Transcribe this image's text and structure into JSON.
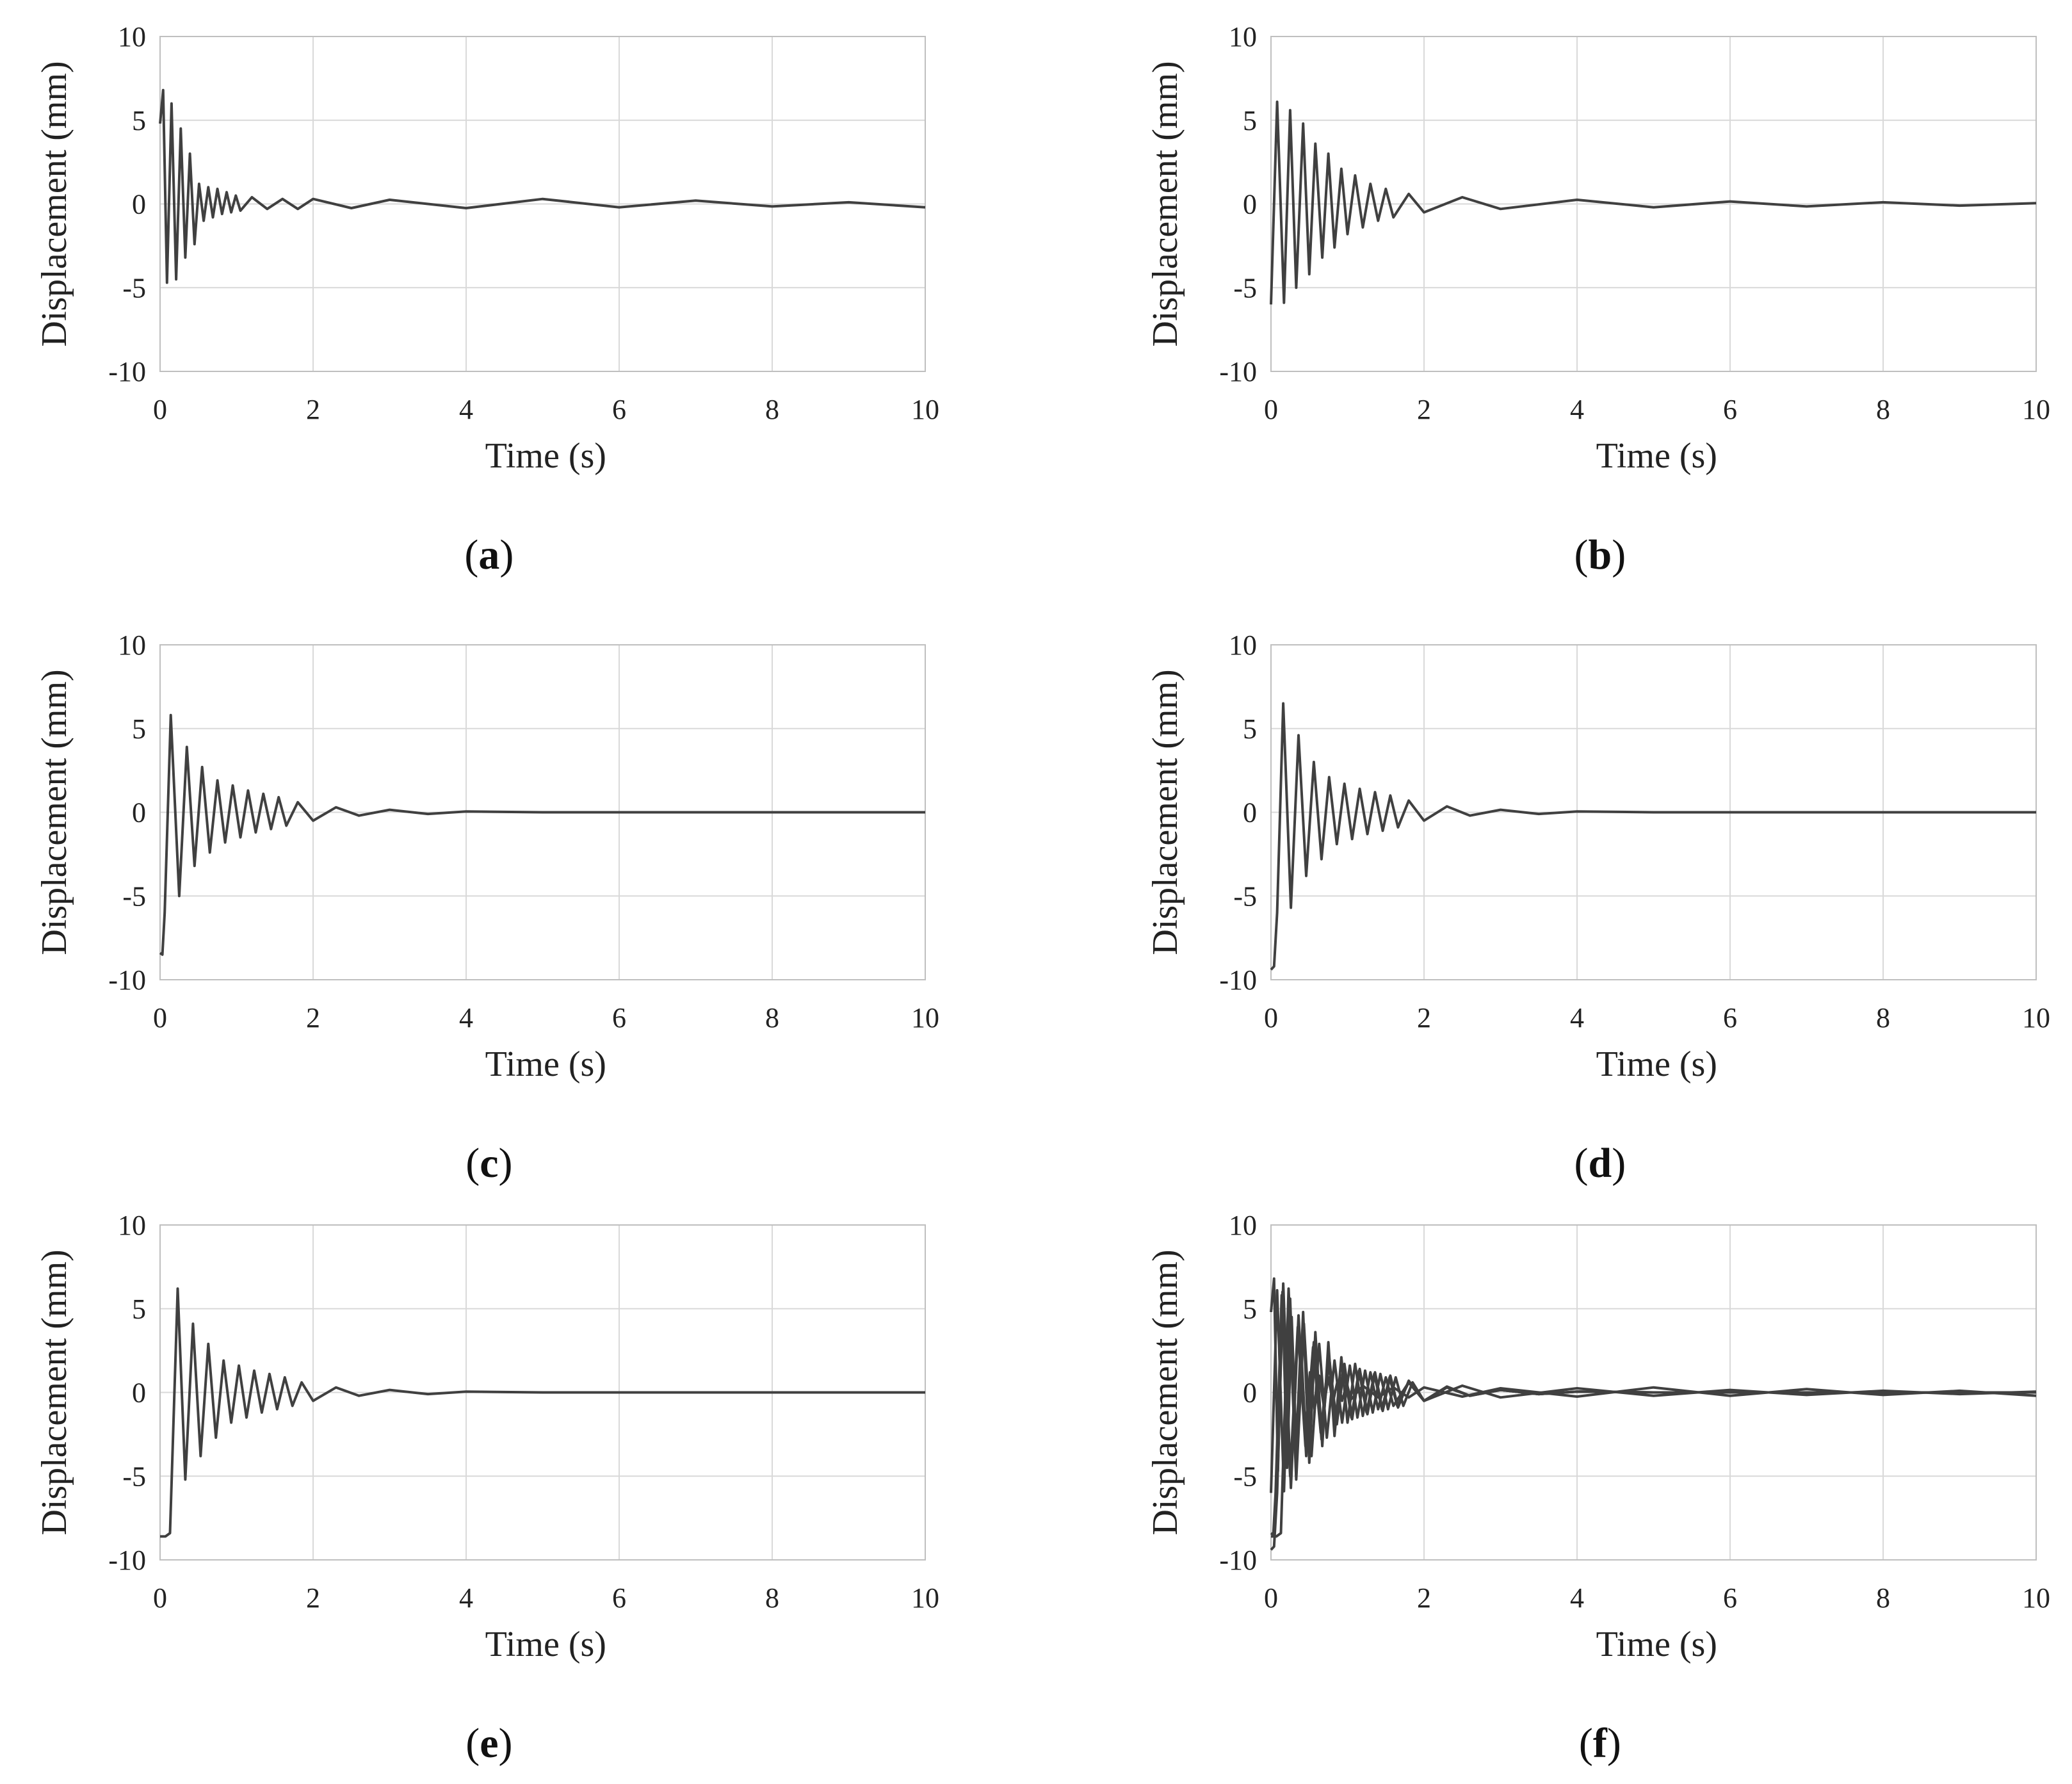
{
  "chart_data": [
    {
      "type": "line",
      "panel_label": "a",
      "xlabel": "Time (s)",
      "ylabel": "Displacement (mm)",
      "xlim": [
        0,
        10
      ],
      "ylim": [
        -10,
        10
      ],
      "xticks": [
        "0",
        "2",
        "4",
        "6",
        "8",
        "10"
      ],
      "yticks": [
        "10",
        "5",
        "0",
        "-5",
        "-10"
      ],
      "grid": true,
      "series": [
        {
          "values": {
            "x": [
              0,
              0.04,
              0.09,
              0.15,
              0.21,
              0.27,
              0.33,
              0.39,
              0.45,
              0.51,
              0.57,
              0.63,
              0.69,
              0.75,
              0.81,
              0.87,
              0.93,
              0.99,
              1.05,
              1.2,
              1.4,
              1.6,
              1.8,
              2.0,
              2.5,
              3.0,
              4.0,
              5.0,
              6.0,
              7.0,
              8.0,
              9.0,
              10.0
            ],
            "y": [
              4.8,
              6.8,
              -4.7,
              6.0,
              -4.5,
              4.5,
              -3.2,
              3.0,
              -2.4,
              1.2,
              -1.0,
              1.0,
              -0.8,
              0.9,
              -0.6,
              0.7,
              -0.5,
              0.5,
              -0.4,
              0.4,
              -0.3,
              0.3,
              -0.3,
              0.3,
              -0.25,
              0.25,
              -0.25,
              0.3,
              -0.2,
              0.2,
              -0.15,
              0.1,
              -0.2
            ]
          }
        }
      ]
    },
    {
      "type": "line",
      "panel_label": "b",
      "xlabel": "Time (s)",
      "ylabel": "Displacement (mm)",
      "xlim": [
        0,
        10
      ],
      "ylim": [
        -10,
        10
      ],
      "xticks": [
        "0",
        "2",
        "4",
        "6",
        "8",
        "10"
      ],
      "yticks": [
        "10",
        "5",
        "0",
        "-5",
        "-10"
      ],
      "grid": true,
      "series": [
        {
          "values": {
            "x": [
              0,
              0.08,
              0.17,
              0.25,
              0.33,
              0.42,
              0.5,
              0.58,
              0.67,
              0.75,
              0.83,
              0.92,
              1.0,
              1.1,
              1.2,
              1.3,
              1.4,
              1.5,
              1.6,
              1.8,
              2.0,
              2.5,
              3.0,
              4.0,
              5.0,
              6.0,
              7.0,
              8.0,
              9.0,
              10.0
            ],
            "y": [
              -6.0,
              6.1,
              -5.9,
              5.6,
              -5.0,
              4.8,
              -4.2,
              3.6,
              -3.2,
              3.0,
              -2.6,
              2.1,
              -1.8,
              1.7,
              -1.4,
              1.2,
              -1.0,
              0.9,
              -0.8,
              0.6,
              -0.5,
              0.4,
              -0.3,
              0.25,
              -0.2,
              0.15,
              -0.15,
              0.1,
              -0.1,
              0.05
            ]
          }
        }
      ]
    },
    {
      "type": "line",
      "panel_label": "c",
      "xlabel": "Time (s)",
      "ylabel": "Displacement (mm)",
      "xlim": [
        0,
        10
      ],
      "ylim": [
        -10,
        10
      ],
      "xticks": [
        "0",
        "2",
        "4",
        "6",
        "8",
        "10"
      ],
      "yticks": [
        "10",
        "5",
        "0",
        "-5",
        "-10"
      ],
      "grid": true,
      "series": [
        {
          "values": {
            "x": [
              0,
              0.03,
              0.06,
              0.14,
              0.25,
              0.35,
              0.45,
              0.55,
              0.65,
              0.75,
              0.85,
              0.95,
              1.05,
              1.15,
              1.25,
              1.35,
              1.45,
              1.55,
              1.65,
              1.8,
              2.0,
              2.3,
              2.6,
              3.0,
              3.5,
              4.0,
              5.0,
              6.0,
              8.0,
              10.0
            ],
            "y": [
              -8.4,
              -8.5,
              -6.0,
              5.8,
              -5.0,
              3.9,
              -3.2,
              2.7,
              -2.4,
              1.9,
              -1.8,
              1.6,
              -1.5,
              1.3,
              -1.2,
              1.1,
              -1.0,
              0.9,
              -0.8,
              0.6,
              -0.5,
              0.3,
              -0.2,
              0.15,
              -0.1,
              0.05,
              0.0,
              0.0,
              0.0,
              0.0
            ]
          }
        }
      ]
    },
    {
      "type": "line",
      "panel_label": "d",
      "xlabel": "Time (s)",
      "ylabel": "Displacement (mm)",
      "xlim": [
        0,
        10
      ],
      "ylim": [
        -10,
        10
      ],
      "xticks": [
        "0",
        "2",
        "4",
        "6",
        "8",
        "10"
      ],
      "yticks": [
        "10",
        "5",
        "0",
        "-5",
        "-10"
      ],
      "grid": true,
      "series": [
        {
          "values": {
            "x": [
              0,
              0.04,
              0.08,
              0.16,
              0.26,
              0.36,
              0.46,
              0.56,
              0.66,
              0.76,
              0.86,
              0.96,
              1.06,
              1.16,
              1.26,
              1.36,
              1.46,
              1.56,
              1.66,
              1.8,
              2.0,
              2.3,
              2.6,
              3.0,
              3.5,
              4.0,
              5.0,
              6.0,
              8.0,
              10.0
            ],
            "y": [
              -9.4,
              -9.2,
              -6.0,
              6.5,
              -5.7,
              4.6,
              -3.8,
              3.0,
              -2.8,
              2.1,
              -1.9,
              1.7,
              -1.6,
              1.4,
              -1.3,
              1.2,
              -1.1,
              1.0,
              -0.9,
              0.7,
              -0.5,
              0.35,
              -0.2,
              0.15,
              -0.1,
              0.05,
              0.0,
              0.0,
              0.0,
              0.0
            ]
          }
        }
      ]
    },
    {
      "type": "line",
      "panel_label": "e",
      "xlabel": "Time (s)",
      "ylabel": "Displacement (mm)",
      "xlim": [
        0,
        10
      ],
      "ylim": [
        -10,
        10
      ],
      "xticks": [
        "0",
        "2",
        "4",
        "6",
        "8",
        "10"
      ],
      "yticks": [
        "10",
        "5",
        "0",
        "-5",
        "-10"
      ],
      "grid": true,
      "series": [
        {
          "values": {
            "x": [
              0,
              0.07,
              0.13,
              0.23,
              0.33,
              0.43,
              0.53,
              0.63,
              0.73,
              0.83,
              0.93,
              1.03,
              1.13,
              1.23,
              1.33,
              1.43,
              1.53,
              1.63,
              1.73,
              1.85,
              2.0,
              2.3,
              2.6,
              3.0,
              3.5,
              4.0,
              5.0,
              6.0,
              8.0,
              10.0
            ],
            "y": [
              -8.6,
              -8.6,
              -8.4,
              6.2,
              -5.2,
              4.1,
              -3.8,
              2.9,
              -2.7,
              1.9,
              -1.8,
              1.6,
              -1.5,
              1.3,
              -1.2,
              1.1,
              -1.0,
              0.9,
              -0.8,
              0.6,
              -0.5,
              0.3,
              -0.2,
              0.15,
              -0.1,
              0.05,
              0.0,
              0.0,
              0.0,
              0.0
            ]
          }
        }
      ]
    },
    {
      "type": "line",
      "panel_label": "f",
      "xlabel": "Time (s)",
      "ylabel": "Displacement (mm)",
      "xlim": [
        0,
        10
      ],
      "ylim": [
        -10,
        10
      ],
      "xticks": [
        "0",
        "2",
        "4",
        "6",
        "8",
        "10"
      ],
      "yticks": [
        "10",
        "5",
        "0",
        "-5",
        "-10"
      ],
      "grid": true,
      "series": [
        {
          "values": {
            "x": [
              0,
              0.04,
              0.09,
              0.15,
              0.21,
              0.27,
              0.33,
              0.39,
              0.45,
              0.51,
              0.57,
              0.63,
              0.69,
              0.75,
              0.81,
              0.87,
              0.93,
              0.99,
              1.05,
              1.2,
              1.4,
              1.6,
              1.8,
              2.0,
              2.5,
              3.0,
              4.0,
              5.0,
              6.0,
              7.0,
              8.0,
              9.0,
              10.0
            ],
            "y": [
              4.8,
              6.8,
              -4.7,
              6.0,
              -4.5,
              4.5,
              -3.2,
              3.0,
              -2.4,
              1.2,
              -1.0,
              1.0,
              -0.8,
              0.9,
              -0.6,
              0.7,
              -0.5,
              0.5,
              -0.4,
              0.4,
              -0.3,
              0.3,
              -0.3,
              0.3,
              -0.25,
              0.25,
              -0.25,
              0.3,
              -0.2,
              0.2,
              -0.15,
              0.1,
              -0.2
            ]
          }
        },
        {
          "values": {
            "x": [
              0,
              0.08,
              0.17,
              0.25,
              0.33,
              0.42,
              0.5,
              0.58,
              0.67,
              0.75,
              0.83,
              0.92,
              1.0,
              1.1,
              1.2,
              1.3,
              1.4,
              1.5,
              1.6,
              1.8,
              2.0,
              2.5,
              3.0,
              4.0,
              5.0,
              6.0,
              7.0,
              8.0,
              9.0,
              10.0
            ],
            "y": [
              -6.0,
              6.1,
              -5.9,
              5.6,
              -5.0,
              4.8,
              -4.2,
              3.6,
              -3.2,
              3.0,
              -2.6,
              2.1,
              -1.8,
              1.7,
              -1.4,
              1.2,
              -1.0,
              0.9,
              -0.8,
              0.6,
              -0.5,
              0.4,
              -0.3,
              0.25,
              -0.2,
              0.15,
              -0.15,
              0.1,
              -0.1,
              0.05
            ]
          }
        },
        {
          "values": {
            "x": [
              0,
              0.03,
              0.06,
              0.14,
              0.25,
              0.35,
              0.45,
              0.55,
              0.65,
              0.75,
              0.85,
              0.95,
              1.05,
              1.15,
              1.25,
              1.35,
              1.45,
              1.55,
              1.65,
              1.8,
              2.0,
              2.3,
              2.6,
              3.0,
              3.5,
              4.0,
              5.0,
              6.0,
              8.0,
              10.0
            ],
            "y": [
              -8.4,
              -8.5,
              -6.0,
              5.8,
              -5.0,
              3.9,
              -3.2,
              2.7,
              -2.4,
              1.9,
              -1.8,
              1.6,
              -1.5,
              1.3,
              -1.2,
              1.1,
              -1.0,
              0.9,
              -0.8,
              0.6,
              -0.5,
              0.3,
              -0.2,
              0.15,
              -0.1,
              0.05,
              0.0,
              0.0,
              0.0,
              0.0
            ]
          }
        },
        {
          "values": {
            "x": [
              0,
              0.04,
              0.08,
              0.16,
              0.26,
              0.36,
              0.46,
              0.56,
              0.66,
              0.76,
              0.86,
              0.96,
              1.06,
              1.16,
              1.26,
              1.36,
              1.46,
              1.56,
              1.66,
              1.8,
              2.0,
              2.3,
              2.6,
              3.0,
              3.5,
              4.0,
              5.0,
              6.0,
              8.0,
              10.0
            ],
            "y": [
              -9.4,
              -9.2,
              -6.0,
              6.5,
              -5.7,
              4.6,
              -3.8,
              3.0,
              -2.8,
              2.1,
              -1.9,
              1.7,
              -1.6,
              1.4,
              -1.3,
              1.2,
              -1.1,
              1.0,
              -0.9,
              0.7,
              -0.5,
              0.35,
              -0.2,
              0.15,
              -0.1,
              0.05,
              0.0,
              0.0,
              0.0,
              0.0
            ]
          }
        },
        {
          "values": {
            "x": [
              0,
              0.07,
              0.13,
              0.23,
              0.33,
              0.43,
              0.53,
              0.63,
              0.73,
              0.83,
              0.93,
              1.03,
              1.13,
              1.23,
              1.33,
              1.43,
              1.53,
              1.63,
              1.73,
              1.85,
              2.0,
              2.3,
              2.6,
              3.0,
              3.5,
              4.0,
              5.0,
              6.0,
              8.0,
              10.0
            ],
            "y": [
              -8.6,
              -8.6,
              -8.4,
              6.2,
              -5.2,
              4.1,
              -3.8,
              2.9,
              -2.7,
              1.9,
              -1.8,
              1.6,
              -1.5,
              1.3,
              -1.2,
              1.1,
              -1.0,
              0.9,
              -0.8,
              0.6,
              -0.5,
              0.3,
              -0.2,
              0.15,
              -0.1,
              0.05,
              0.0,
              0.0,
              0.0,
              0.0
            ]
          }
        }
      ]
    }
  ],
  "colors": {
    "line": "#404040",
    "grid": "#d9d9d9",
    "frame": "#bfbfbf",
    "text": "#222222"
  }
}
